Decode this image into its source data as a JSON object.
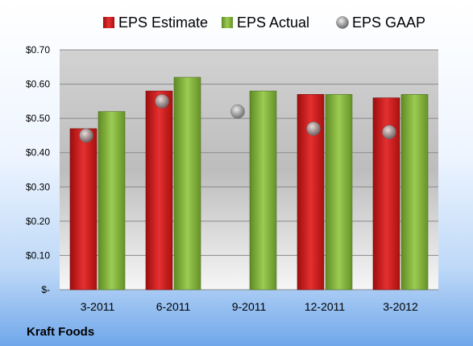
{
  "chart_data": {
    "type": "bar",
    "categories": [
      "3-2011",
      "6-2011",
      "9-2011",
      "12-2011",
      "3-2012"
    ],
    "series": [
      {
        "name": "EPS Estimate",
        "kind": "bar",
        "color": "#e02020",
        "values": [
          0.47,
          0.58,
          null,
          0.57,
          0.56
        ]
      },
      {
        "name": "EPS Actual",
        "kind": "bar",
        "color": "#8cbf3c",
        "values": [
          0.52,
          0.62,
          0.58,
          0.57,
          0.57
        ]
      },
      {
        "name": "EPS GAAP",
        "kind": "marker",
        "color": "#9a9a9a",
        "values": [
          0.45,
          0.55,
          0.52,
          0.47,
          0.46
        ]
      }
    ],
    "ylim": [
      0,
      0.7
    ],
    "yticks": [
      0,
      0.1,
      0.2,
      0.3,
      0.4,
      0.5,
      0.6,
      0.7
    ],
    "ytick_labels": [
      "$-",
      "$0.10",
      "$0.20",
      "$0.30",
      "$0.40",
      "$0.50",
      "$0.60",
      "$0.70"
    ],
    "grid": true,
    "legend_position": "top"
  },
  "footer": {
    "company": "Kraft Foods"
  }
}
